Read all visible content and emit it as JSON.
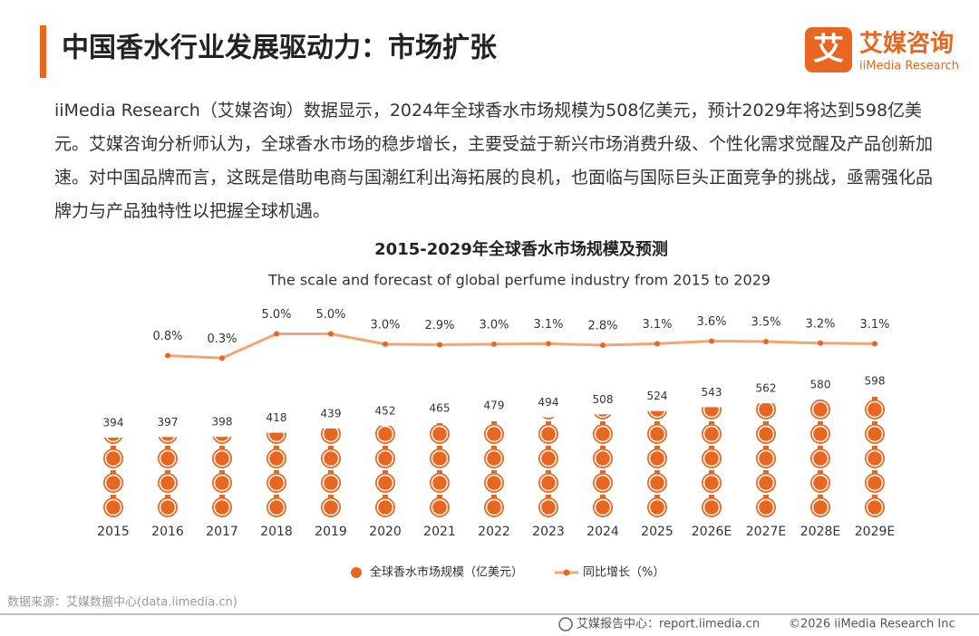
{
  "header": {
    "title": "中国香水行业发展驱动力：市场扩张",
    "logo_mark": "艾",
    "logo_name": "艾媒咨询",
    "logo_sub": "iiMedia Research"
  },
  "paragraph": "iiMedia Research（艾媒咨询）数据显示，2024年全球香水市场规模为508亿美元，预计2029年将达到598亿美元。艾媒咨询分析师认为，全球香水市场的稳步增长，主要受益于新兴市场消费升级、个性化需求觉醒及产品创新加速。对中国品牌而言，这既是借助电商与国潮红利出海拓展的良机，也面临与国际巨头正面竞争的挑战，亟需强化品牌力与产品独特性以把握全球机遇。",
  "chart_data": {
    "type": "bar_line",
    "title": "2015-2029年全球香水市场规模及预测",
    "subtitle": "The scale and forecast of global perfume industry from 2015 to 2029",
    "categories": [
      "2015",
      "2016",
      "2017",
      "2018",
      "2019",
      "2020",
      "2021",
      "2022",
      "2023",
      "2024",
      "2025",
      "2026E",
      "2027E",
      "2028E",
      "2029E"
    ],
    "series": [
      {
        "name": "全球香水市场规模（亿美元）",
        "color": "#e8661f",
        "values": [
          394,
          397,
          398,
          418,
          439,
          452,
          465,
          479,
          494,
          508,
          524,
          543,
          562,
          580,
          598
        ]
      },
      {
        "name": "同比增长（%）",
        "color": "#f2a574",
        "axis": "y2",
        "values": [
          null,
          0.8,
          0.3,
          5.0,
          5.0,
          3.0,
          2.9,
          3.0,
          3.1,
          2.8,
          3.1,
          3.6,
          3.5,
          3.2,
          3.1
        ],
        "value_labels": [
          null,
          "0.8%",
          "0.3%",
          "5.0%",
          "5.0%",
          "3.0%",
          "2.9%",
          "3.0%",
          "3.1%",
          "2.8%",
          "3.1%",
          "3.6%",
          "3.5%",
          "3.2%",
          "3.1%"
        ]
      }
    ]
  },
  "footer": {
    "source": "数据来源：艾媒数据中心(data.iimedia.cn)",
    "center": "艾媒报告中心：report.iimedia.cn",
    "copyright": "©2026  iiMedia Research  Inc"
  }
}
